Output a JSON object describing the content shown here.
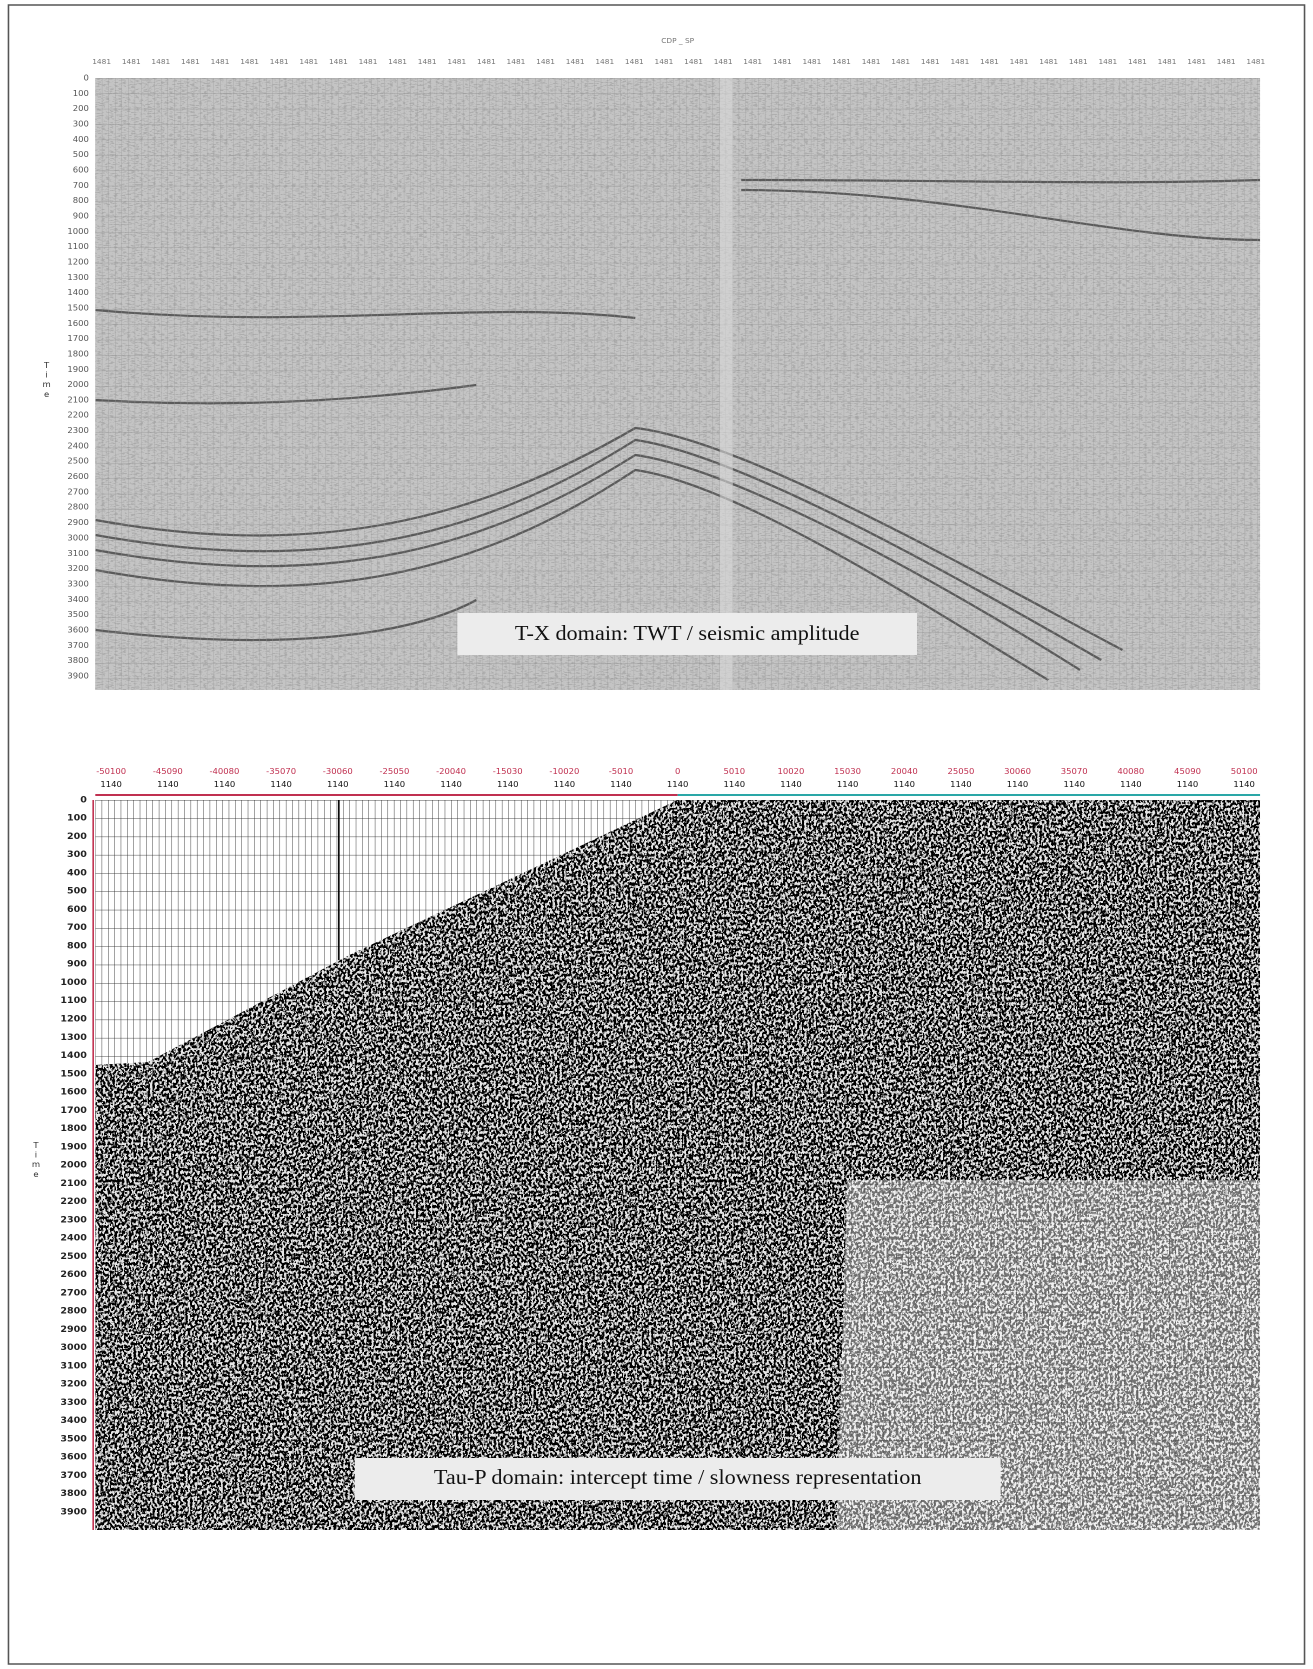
{
  "top_panel": {
    "header": "CDP _ SP",
    "x_ticks": [
      "1481",
      "1481",
      "1481",
      "1481",
      "1481",
      "1481",
      "1481",
      "1481",
      "1481",
      "1481",
      "1481",
      "1481",
      "1481",
      "1481",
      "1481",
      "1481",
      "1481",
      "1481",
      "1481",
      "1481",
      "1481",
      "1481",
      "1481",
      "1481",
      "1481",
      "1481",
      "1481",
      "1481",
      "1481",
      "1481",
      "1481",
      "1481",
      "1481",
      "1481",
      "1481",
      "1481",
      "1481",
      "1481",
      "1481",
      "1481"
    ],
    "axis_label": "Time",
    "y_ticks": [
      "0",
      "100",
      "200",
      "300",
      "400",
      "500",
      "600",
      "700",
      "800",
      "900",
      "1000",
      "1100",
      "1200",
      "1300",
      "1400",
      "1500",
      "1600",
      "1700",
      "1800",
      "1900",
      "2000",
      "2100",
      "2200",
      "2300",
      "2400",
      "2500",
      "2600",
      "2700",
      "2800",
      "2900",
      "3000",
      "3100",
      "3200",
      "3300",
      "3400",
      "3500",
      "3600",
      "3700",
      "3800",
      "3900"
    ],
    "caption": "T-X domain: TWT / seismic amplitude"
  },
  "bottom_panel": {
    "x_ticks": [
      "-50100",
      "-45090",
      "-40080",
      "-35070",
      "-30060",
      "-25050",
      "-20040",
      "-15030",
      "-10020",
      "-5010",
      "0",
      "5010",
      "10020",
      "15030",
      "20040",
      "25050",
      "30060",
      "35070",
      "40080",
      "45090",
      "50100"
    ],
    "x_ticks_secondary": [
      "1140",
      "1140",
      "1140",
      "1140",
      "1140",
      "1140",
      "1140",
      "1140",
      "1140",
      "1140",
      "1140",
      "1140",
      "1140",
      "1140",
      "1140",
      "1140",
      "1140",
      "1140",
      "1140",
      "1140",
      "1140"
    ],
    "axis_label": "Time",
    "y_ticks": [
      "0",
      "100",
      "200",
      "300",
      "400",
      "500",
      "600",
      "700",
      "800",
      "900",
      "1000",
      "1100",
      "1200",
      "1300",
      "1400",
      "1500",
      "1600",
      "1700",
      "1800",
      "1900",
      "2000",
      "2100",
      "2200",
      "2300",
      "2400",
      "2500",
      "2600",
      "2700",
      "2800",
      "2900",
      "3000",
      "3100",
      "3200",
      "3300",
      "3400",
      "3500",
      "3600",
      "3700",
      "3800",
      "3900"
    ],
    "caption": "Tau-P domain: intercept time / slowness representation"
  }
}
